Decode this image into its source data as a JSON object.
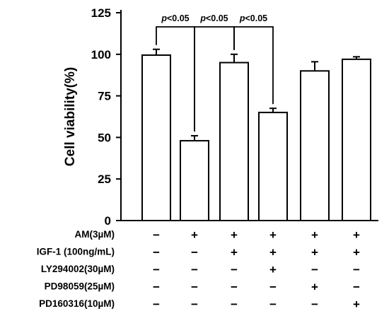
{
  "chart_data": {
    "type": "bar",
    "ylabel": "Cell viability(%)",
    "ylim": [
      0,
      125
    ],
    "yticks": [
      0,
      25,
      50,
      75,
      100,
      125
    ],
    "values": [
      99.5,
      48,
      95,
      65,
      90,
      97
    ],
    "errors": [
      3.5,
      3,
      5,
      2.5,
      5.5,
      1.5
    ],
    "significance": [
      {
        "from": 0,
        "to": 1,
        "label_prefix": "p",
        "label_suffix": "<0.05"
      },
      {
        "from": 1,
        "to": 2,
        "label_prefix": "p",
        "label_suffix": "<0.05"
      },
      {
        "from": 2,
        "to": 3,
        "label_prefix": "p",
        "label_suffix": "<0.05"
      }
    ],
    "treatment_table": [
      {
        "label": "AM(3µM)",
        "signs": [
          "−",
          "+",
          "+",
          "+",
          "+",
          "+"
        ]
      },
      {
        "label": "IGF-1  (100ng/mL)",
        "signs": [
          "−",
          "−",
          "+",
          "+",
          "+",
          "+"
        ]
      },
      {
        "label": "LY294002(30µM)",
        "signs": [
          "−",
          "−",
          "−",
          "+",
          "−",
          "−"
        ]
      },
      {
        "label": "PD98059(25µM)",
        "signs": [
          "−",
          "−",
          "−",
          "−",
          "+",
          "−"
        ]
      },
      {
        "label": "PD160316(10µM)",
        "signs": [
          "−",
          "−",
          "−",
          "−",
          "−",
          "+"
        ]
      }
    ],
    "grid": false,
    "legend": "none",
    "bar_fill": "#ffffff",
    "bar_stroke": "#000000"
  }
}
